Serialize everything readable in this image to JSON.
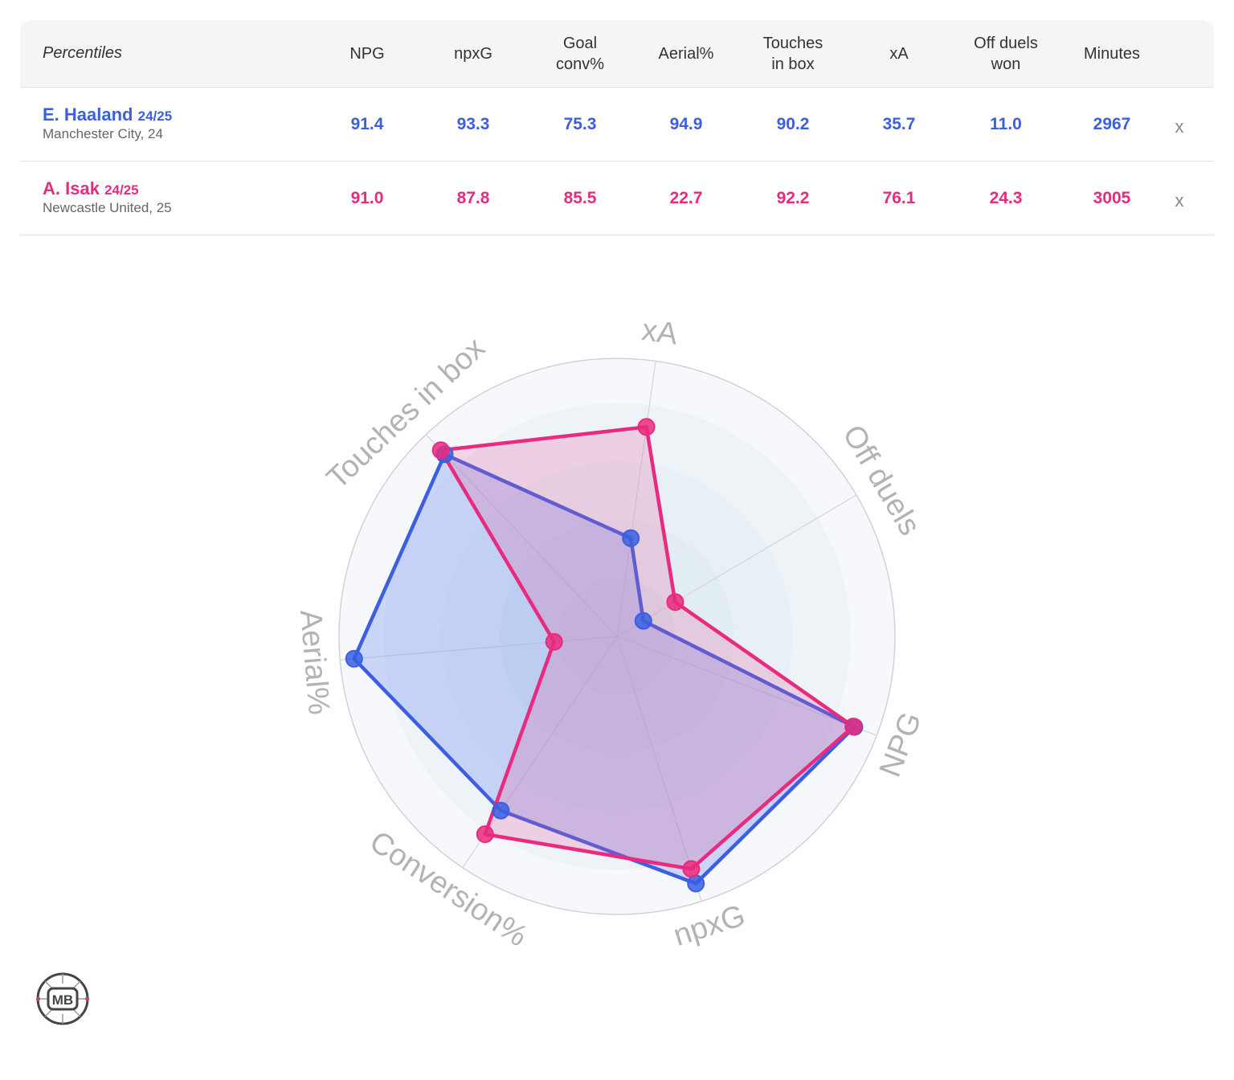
{
  "table": {
    "header_label": "Percentiles",
    "columns": [
      [
        "NPG"
      ],
      [
        "npxG"
      ],
      [
        "Goal",
        "conv%"
      ],
      [
        "Aerial%"
      ],
      [
        "Touches",
        "in box"
      ],
      [
        "xA"
      ],
      [
        "Off duels",
        "won"
      ],
      [
        "Minutes"
      ]
    ],
    "rows": [
      {
        "name": "E. Haaland",
        "season": "24/25",
        "club": "Manchester City, 24",
        "values": [
          "91.4",
          "93.3",
          "75.3",
          "94.9",
          "90.2",
          "35.7",
          "11.0",
          "2967"
        ],
        "remove_label": "x"
      },
      {
        "name": "A. Isak",
        "season": "24/25",
        "club": "Newcastle United, 25",
        "values": [
          "91.0",
          "87.8",
          "85.5",
          "22.7",
          "92.2",
          "76.1",
          "24.3",
          "3005"
        ],
        "remove_label": "x"
      }
    ]
  },
  "colors": {
    "haaland": "#3b5fe0",
    "isak": "#e82b7e",
    "axis_label": "#b3b3b3"
  },
  "chart_data": {
    "type": "radar",
    "axes": [
      "xA",
      "Off duels",
      "NPG",
      "npxG",
      "Conversion%",
      "Aerial%",
      "Touches in box"
    ],
    "range": [
      0,
      100
    ],
    "series": [
      {
        "name": "E. Haaland",
        "values": [
          35.7,
          11.0,
          91.4,
          93.3,
          75.3,
          94.9,
          90.2
        ]
      },
      {
        "name": "A. Isak",
        "values": [
          76.1,
          24.3,
          91.0,
          87.8,
          85.5,
          22.7,
          92.2
        ]
      }
    ]
  },
  "logo": {
    "text": "MB",
    "icon": "mb-logo-icon"
  }
}
